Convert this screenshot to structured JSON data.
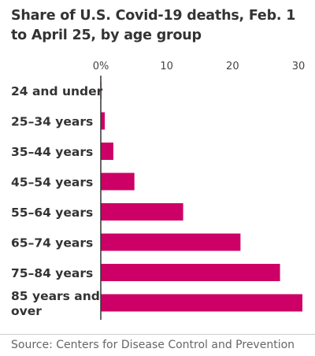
{
  "colors": {
    "bar": "#cc0066",
    "axis": "#333333",
    "text": "#333333",
    "source_text": "#666666"
  },
  "chart_data": {
    "type": "bar",
    "orientation": "horizontal",
    "title": "Share of U.S. Covid-19 deaths, Feb. 1 to April 25, by age group",
    "xlim": [
      0,
      30
    ],
    "grid": false,
    "tick_labels": [
      "0%",
      "10",
      "20",
      "30"
    ],
    "tick_values": [
      0,
      10,
      20,
      30
    ],
    "categories": [
      "24 and under",
      "25–34 years",
      "35–44 years",
      "45–54 years",
      "55–64 years",
      "65–74 years",
      "75–84 years",
      "85 years and over"
    ],
    "category_lines": [
      [
        "24 and under"
      ],
      [
        "25–34 years"
      ],
      [
        "35–44 years"
      ],
      [
        "45–54 years"
      ],
      [
        "55–64 years"
      ],
      [
        "65–74 years"
      ],
      [
        "75–84 years"
      ],
      [
        "85 years and",
        "over"
      ]
    ],
    "values": [
      0.1,
      0.6,
      1.9,
      5.1,
      12.5,
      21.2,
      27.2,
      30.6
    ]
  },
  "source": "Source: Centers for Disease Control and Prevention"
}
